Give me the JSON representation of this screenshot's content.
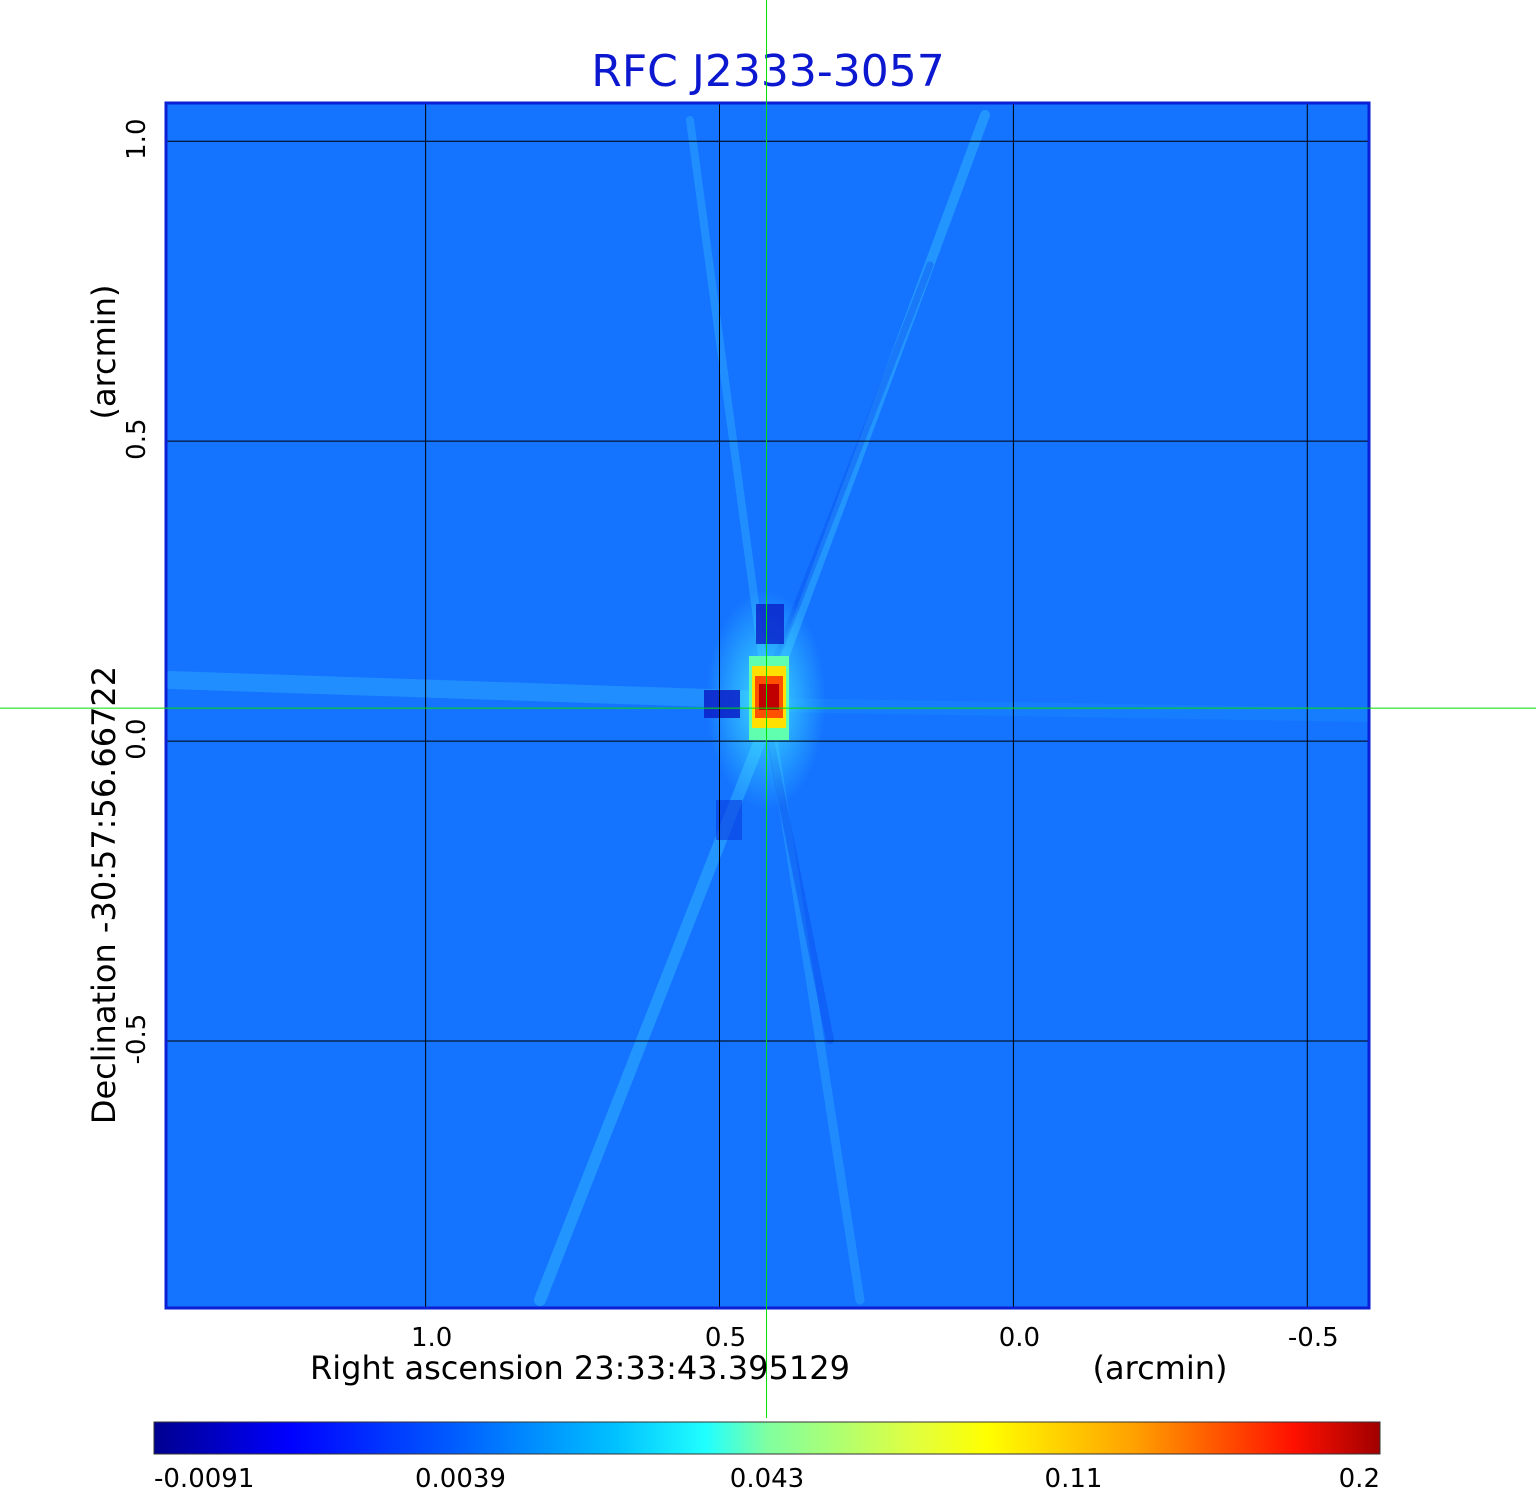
{
  "chart_data": {
    "type": "heatmap",
    "title": "RFC J2333-3057",
    "xlabel": "Right ascension  23:33:43.395129",
    "xunit": "(arcmin)",
    "ylabel": "Declination  -30:57:56.66722",
    "yunit": "(arcmin)",
    "x_ticks": [
      {
        "value": 1.0,
        "label": "1.0"
      },
      {
        "value": 0.5,
        "label": "0.5"
      },
      {
        "value": 0.0,
        "label": "0.0"
      },
      {
        "value": -0.5,
        "label": "-0.5"
      }
    ],
    "y_ticks": [
      {
        "value": 1.0,
        "label": "1.0"
      },
      {
        "value": 0.5,
        "label": "0.5"
      },
      {
        "value": 0.0,
        "label": "0.0"
      },
      {
        "value": -0.5,
        "label": "-0.5"
      }
    ],
    "xlim": [
      1.44,
      -0.605
    ],
    "ylim": [
      -0.945,
      1.062
    ],
    "grid": true,
    "crosshair": {
      "x": 0.42,
      "y": 0.055
    },
    "peak": {
      "x": 0.42,
      "y": 0.07
    },
    "colorbar": {
      "ticks": [
        "-0.0091",
        "0.0039",
        "0.043",
        "0.11",
        "0.2"
      ],
      "colormap": "jet",
      "min": -0.0091,
      "max": 0.2
    },
    "colors": {
      "background": "#1473ff",
      "grid": "#000000",
      "crosshair": "#00e000",
      "frame": "#0a1fd6",
      "title": "#0b18d0"
    }
  }
}
